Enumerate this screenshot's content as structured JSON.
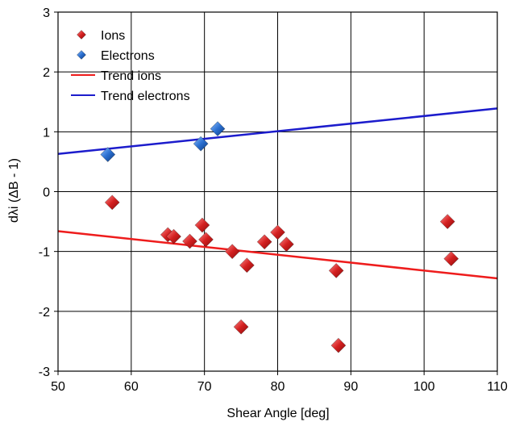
{
  "chart_data": {
    "type": "scatter",
    "title": "",
    "xlabel": "Shear Angle [deg]",
    "ylabel": "dλi (ΔB - 1)",
    "xlim": [
      50,
      110
    ],
    "ylim": [
      -3,
      3
    ],
    "xticks": [
      "50",
      "60",
      "70",
      "80",
      "90",
      "100",
      "110"
    ],
    "yticks": [
      "3",
      "2",
      "1",
      "0",
      "-1",
      "-2",
      "-3"
    ],
    "grid": true,
    "legend_position": "top-left",
    "series": [
      {
        "name": "Ions",
        "kind": "points",
        "marker": "diamond",
        "color": "#d42020",
        "points": [
          [
            57.4,
            -0.18
          ],
          [
            65.0,
            -0.72
          ],
          [
            65.8,
            -0.75
          ],
          [
            68.0,
            -0.83
          ],
          [
            69.7,
            -0.56
          ],
          [
            70.2,
            -0.8
          ],
          [
            73.8,
            -1.0
          ],
          [
            75.0,
            -2.26
          ],
          [
            75.8,
            -1.23
          ],
          [
            78.2,
            -0.84
          ],
          [
            80.0,
            -0.68
          ],
          [
            81.2,
            -0.88
          ],
          [
            88.0,
            -1.32
          ],
          [
            88.3,
            -2.57
          ],
          [
            103.2,
            -0.5
          ],
          [
            103.7,
            -1.12
          ]
        ]
      },
      {
        "name": "Electrons",
        "kind": "points",
        "marker": "diamond",
        "color": "#2a6fd0",
        "points": [
          [
            56.8,
            0.62
          ],
          [
            69.5,
            0.8
          ],
          [
            71.8,
            1.05
          ]
        ]
      },
      {
        "name": "Trend ions",
        "kind": "line",
        "color": "#ee1c1c",
        "points": [
          [
            50,
            -0.66
          ],
          [
            110,
            -1.45
          ]
        ]
      },
      {
        "name": "Trend electrons",
        "kind": "line",
        "color": "#1c1ccc",
        "points": [
          [
            50,
            0.63
          ],
          [
            110,
            1.39
          ]
        ]
      }
    ]
  }
}
